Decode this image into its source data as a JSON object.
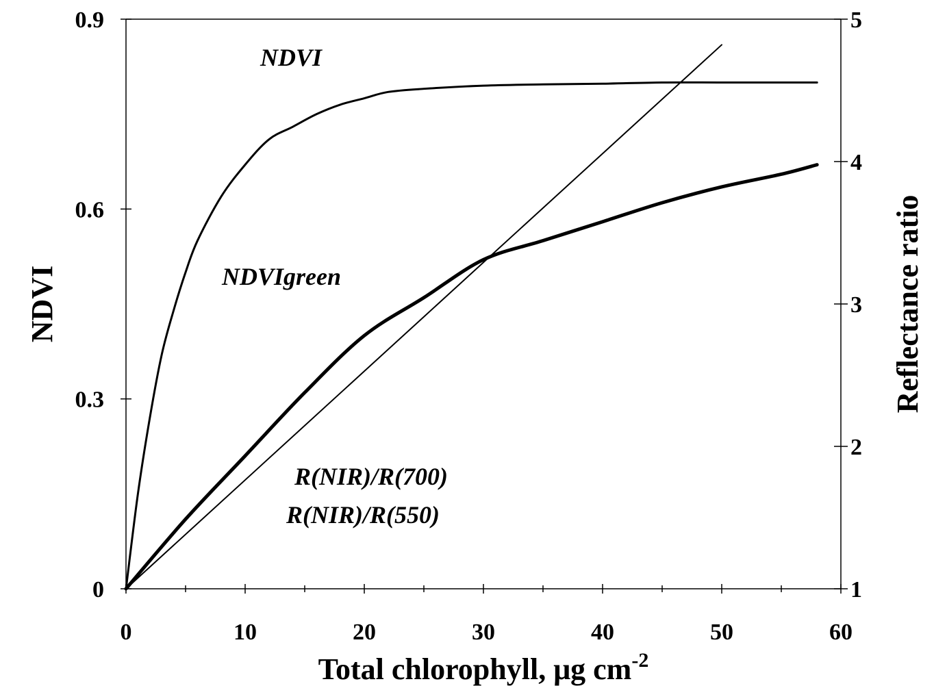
{
  "chart_data": {
    "type": "line",
    "xlabel": "Total chlorophyll, μg cm",
    "xlabel_superscript": "-2",
    "ylabel": "NDVI",
    "y2label": "Reflectance ratio",
    "xlim": [
      0,
      60
    ],
    "ylim": [
      0,
      0.9
    ],
    "y2lim": [
      1,
      5
    ],
    "x_ticks": [
      "0",
      "10",
      "20",
      "30",
      "40",
      "50",
      "60"
    ],
    "y_ticks": [
      "0",
      "0.3",
      "0.6",
      "0.9"
    ],
    "y2_ticks": [
      "1",
      "2",
      "3",
      "4",
      "5"
    ],
    "grid": false,
    "legend": "none",
    "annotations": {
      "ndvi": "NDVI",
      "ndvigreen": "NDVIgreen",
      "ratio_700": "R(NIR)/R(700)",
      "ratio_550": "R(NIR)/R(550)"
    },
    "series": [
      {
        "name": "NDVI",
        "axis": "left",
        "x": [
          0,
          1,
          2,
          3,
          4,
          5,
          6,
          8,
          10,
          12,
          14,
          16,
          18,
          20,
          22,
          25,
          30,
          35,
          40,
          45,
          50,
          55,
          58
        ],
        "y": [
          0,
          0.15,
          0.27,
          0.37,
          0.44,
          0.5,
          0.55,
          0.62,
          0.67,
          0.71,
          0.73,
          0.75,
          0.765,
          0.775,
          0.785,
          0.79,
          0.795,
          0.797,
          0.798,
          0.8,
          0.8,
          0.8,
          0.8
        ]
      },
      {
        "name": "NDVIgreen",
        "axis": "left",
        "x": [
          0,
          5,
          10,
          15,
          20,
          25,
          30,
          35,
          40,
          45,
          50,
          55,
          58
        ],
        "y": [
          0,
          0.11,
          0.21,
          0.31,
          0.4,
          0.46,
          0.52,
          0.55,
          0.58,
          0.61,
          0.635,
          0.655,
          0.67
        ]
      },
      {
        "name": "R(NIR)/R(700)",
        "axis": "right",
        "x": [
          0,
          50
        ],
        "y": [
          1.0,
          4.82
        ]
      }
    ]
  }
}
